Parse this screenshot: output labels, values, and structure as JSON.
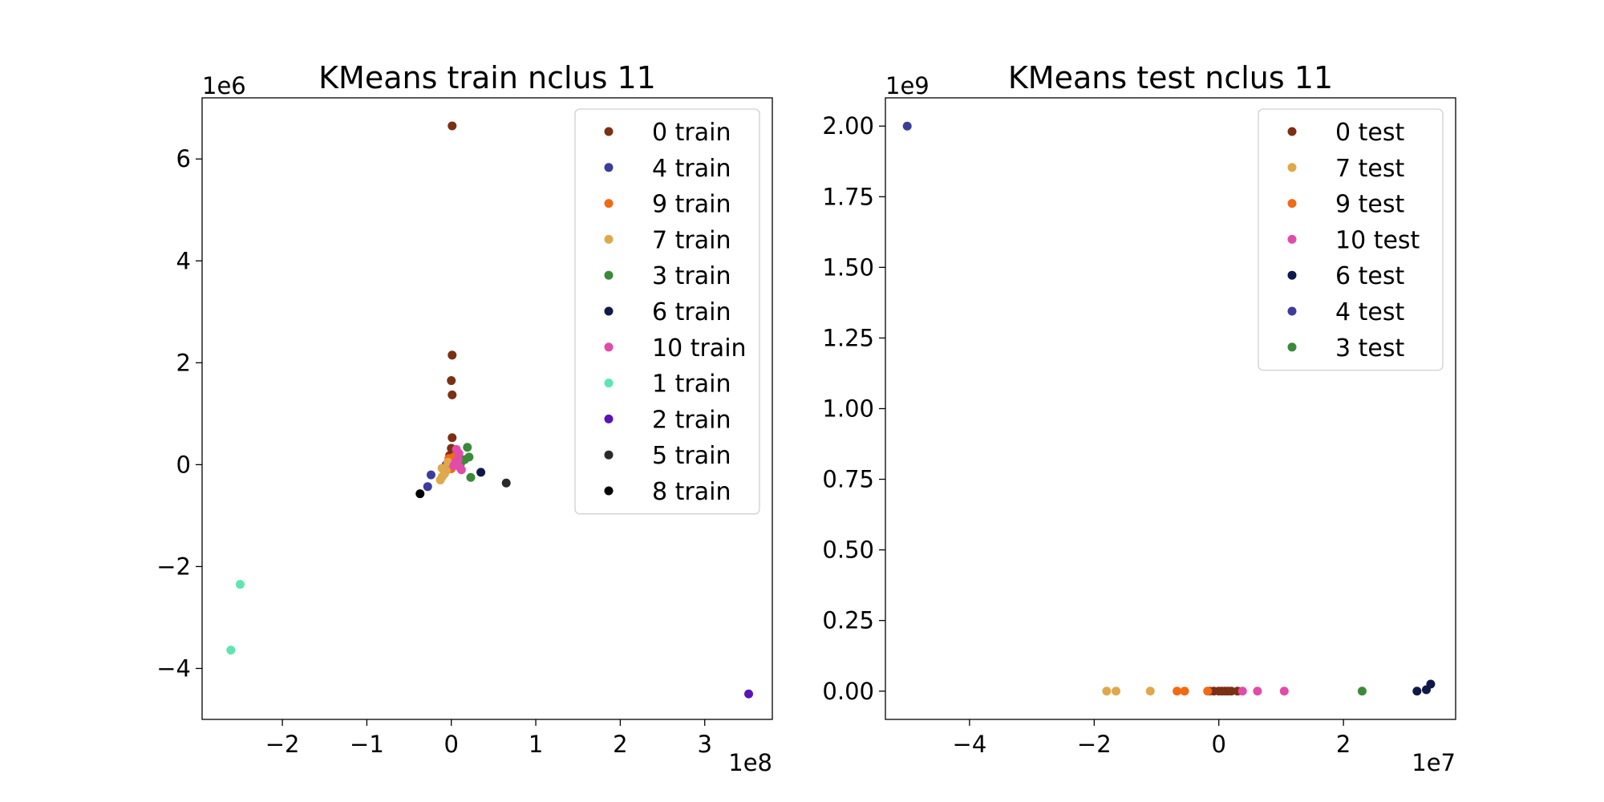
{
  "chart_data": [
    {
      "type": "scatter",
      "title": "KMeans train nclus 11",
      "xlabel": "",
      "ylabel": "",
      "x_offset_label": "1e8",
      "y_offset_label": "1e6",
      "xlim": [
        -2.95,
        3.8
      ],
      "ylim": [
        -5.0,
        7.2
      ],
      "x_ticks": [
        -2,
        -1,
        0,
        1,
        2,
        3
      ],
      "y_ticks": [
        -4,
        -2,
        0,
        2,
        4,
        6
      ],
      "x_tick_labels": [
        "−2",
        "−1",
        "0",
        "1",
        "2",
        "3"
      ],
      "y_tick_labels": [
        "−4",
        "−2",
        "0",
        "2",
        "4",
        "6"
      ],
      "grid": false,
      "legend_position": "top-right",
      "series": [
        {
          "name": "0 train",
          "color": "#7b3014",
          "points": [
            [
              0.01,
              6.65
            ],
            [
              0.01,
              2.15
            ],
            [
              0.0,
              1.65
            ],
            [
              0.01,
              1.37
            ],
            [
              0.01,
              0.53
            ],
            [
              0.0,
              0.32
            ],
            [
              0.02,
              0.25
            ],
            [
              -0.02,
              0.18
            ],
            [
              0.03,
              0.08
            ],
            [
              -0.01,
              0.05
            ]
          ]
        },
        {
          "name": "4 train",
          "color": "#3c3c9c",
          "points": [
            [
              -0.24,
              -0.2
            ],
            [
              -0.28,
              -0.43
            ],
            [
              -0.06,
              0.0
            ],
            [
              -0.03,
              0.08
            ]
          ]
        },
        {
          "name": "9 train",
          "color": "#f26a12",
          "points": [
            [
              -0.03,
              0.12
            ],
            [
              -0.05,
              -0.1
            ],
            [
              0.0,
              -0.08
            ],
            [
              -0.02,
              0.05
            ],
            [
              0.03,
              0.15
            ],
            [
              -0.04,
              0.0
            ]
          ]
        },
        {
          "name": "7 train",
          "color": "#e0a84c",
          "points": [
            [
              -0.11,
              -0.07
            ],
            [
              -0.13,
              -0.3
            ],
            [
              -0.11,
              -0.24
            ],
            [
              -0.08,
              -0.18
            ],
            [
              -0.06,
              -0.12
            ],
            [
              -0.04,
              0.05
            ]
          ]
        },
        {
          "name": "3 train",
          "color": "#3a8a3a",
          "points": [
            [
              0.19,
              0.34
            ],
            [
              0.21,
              0.15
            ],
            [
              0.16,
              0.1
            ],
            [
              0.23,
              -0.25
            ],
            [
              0.11,
              0.02
            ]
          ]
        },
        {
          "name": "6 train",
          "color": "#0f1a4a",
          "points": [
            [
              0.35,
              -0.15
            ]
          ]
        },
        {
          "name": "10 train",
          "color": "#e04ca8",
          "points": [
            [
              0.06,
              0.3
            ],
            [
              0.09,
              0.22
            ],
            [
              0.1,
              -0.05
            ],
            [
              0.12,
              -0.1
            ],
            [
              0.05,
              0.05
            ],
            [
              0.08,
              0.1
            ],
            [
              0.03,
              -0.02
            ]
          ]
        },
        {
          "name": "1 train",
          "color": "#5ce6b0",
          "points": [
            [
              -2.5,
              -2.35
            ],
            [
              -2.61,
              -3.64
            ]
          ]
        },
        {
          "name": "2 train",
          "color": "#5a14b4",
          "points": [
            [
              3.52,
              -4.5
            ]
          ]
        },
        {
          "name": "5 train",
          "color": "#2a2a2a",
          "points": [
            [
              0.65,
              -0.36
            ]
          ]
        },
        {
          "name": "8 train",
          "color": "#000000",
          "points": [
            [
              -0.37,
              -0.57
            ]
          ]
        }
      ]
    },
    {
      "type": "scatter",
      "title": "KMeans test nclus 11",
      "xlabel": "",
      "ylabel": "",
      "x_offset_label": "1e7",
      "y_offset_label": "1e9",
      "xlim": [
        -5.35,
        3.8
      ],
      "ylim": [
        -0.1,
        2.1
      ],
      "x_ticks": [
        -4,
        -2,
        0,
        2
      ],
      "y_ticks": [
        0.0,
        0.25,
        0.5,
        0.75,
        1.0,
        1.25,
        1.5,
        1.75,
        2.0
      ],
      "x_tick_labels": [
        "−4",
        "−2",
        "0",
        "2"
      ],
      "y_tick_labels": [
        "0.00",
        "0.25",
        "0.50",
        "0.75",
        "1.00",
        "1.25",
        "1.50",
        "1.75",
        "2.00"
      ],
      "grid": false,
      "legend_position": "top-right",
      "series": [
        {
          "name": "0 test",
          "color": "#7b3014",
          "points": [
            [
              -0.15,
              0.0
            ],
            [
              -0.08,
              0.0
            ],
            [
              0.0,
              0.0
            ],
            [
              0.05,
              0.0
            ],
            [
              0.1,
              0.0
            ],
            [
              0.15,
              0.0
            ],
            [
              0.2,
              0.0
            ],
            [
              0.3,
              0.0
            ]
          ]
        },
        {
          "name": "7 test",
          "color": "#e0a84c",
          "points": [
            [
              -1.8,
              0.0
            ],
            [
              -1.65,
              0.0
            ],
            [
              -1.1,
              0.0
            ]
          ]
        },
        {
          "name": "9 test",
          "color": "#f26a12",
          "points": [
            [
              -0.67,
              0.0
            ],
            [
              -0.55,
              0.0
            ],
            [
              -0.18,
              0.0
            ]
          ]
        },
        {
          "name": "10 test",
          "color": "#e04ca8",
          "points": [
            [
              0.38,
              0.0
            ],
            [
              0.62,
              0.0
            ],
            [
              1.05,
              0.0
            ]
          ]
        },
        {
          "name": "6 test",
          "color": "#0f1a4a",
          "points": [
            [
              3.18,
              0.0
            ],
            [
              3.33,
              0.005
            ],
            [
              3.4,
              0.025
            ]
          ]
        },
        {
          "name": "4 test",
          "color": "#3c3c9c",
          "points": [
            [
              -5.0,
              2.0
            ]
          ]
        },
        {
          "name": "3 test",
          "color": "#3a8a3a",
          "points": [
            [
              2.3,
              0.0
            ]
          ]
        }
      ]
    }
  ]
}
